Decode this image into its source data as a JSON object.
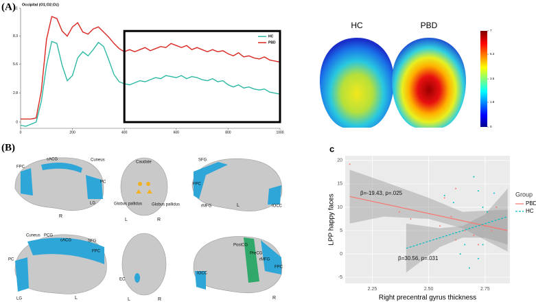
{
  "panel_labels": [
    "(A)",
    "(B)",
    "c"
  ],
  "chart_data": [
    {
      "type": "line",
      "title": "Occipital (O1;O2;Oz)",
      "x": [
        0,
        20,
        40,
        60,
        80,
        100,
        120,
        140,
        160,
        180,
        200,
        220,
        240,
        260,
        280,
        300,
        320,
        340,
        360,
        380,
        400,
        420,
        440,
        460,
        480,
        500,
        520,
        540,
        560,
        580,
        600,
        620,
        640,
        660,
        680,
        700,
        720,
        740,
        760,
        780,
        800,
        820,
        840,
        860,
        880,
        900,
        920,
        940,
        960,
        980,
        1000
      ],
      "xlim": [
        0,
        1000
      ],
      "xticks": [
        0,
        200,
        400,
        600,
        800,
        1000
      ],
      "ylim": [
        -0.6,
        11
      ],
      "yticks": [
        0,
        2.8,
        5.6,
        8.3,
        11
      ],
      "legend": "upper right",
      "highlight_box": {
        "x": [
          400,
          1000
        ],
        "y": [
          0,
          8.8
        ]
      },
      "series": [
        {
          "name": "HC",
          "color": "#2cb9a4",
          "values": [
            -0.3,
            -0.4,
            -0.2,
            0,
            2,
            5.5,
            7.8,
            7.6,
            5.5,
            4,
            4.5,
            6.2,
            6.8,
            6.4,
            7,
            7.7,
            7.3,
            6,
            4.6,
            3.9,
            3.7,
            3.6,
            3.8,
            4,
            3.9,
            4.1,
            4.3,
            4.2,
            4.5,
            4.4,
            4.3,
            4.5,
            4.2,
            4.4,
            4.3,
            4.1,
            4,
            4.2,
            3.9,
            4,
            3.6,
            3.4,
            3.6,
            3.3,
            3.4,
            3.2,
            3.1,
            3.2,
            2.9,
            2.8,
            2.7
          ]
        },
        {
          "name": "PBD",
          "color": "#d9261f",
          "values": [
            0.3,
            0.3,
            0.3,
            0.4,
            3,
            8,
            10.2,
            10,
            8.8,
            8.3,
            9.2,
            9.6,
            8.7,
            8.5,
            9,
            9.2,
            8.7,
            8.2,
            7.6,
            7.1,
            6.8,
            7,
            6.8,
            7,
            7.2,
            6.9,
            7.1,
            7.3,
            7.2,
            7.6,
            7.4,
            7.2,
            7.4,
            7,
            7.2,
            7,
            6.8,
            7,
            6.8,
            6.9,
            6.6,
            6.4,
            6.7,
            6.3,
            6.4,
            6.2,
            6.1,
            6.3,
            6,
            5.9,
            5.8
          ]
        }
      ]
    },
    {
      "type": "topomap",
      "titles": [
        "HC",
        "PBD"
      ],
      "clim": [
        0,
        7
      ],
      "cticks": [
        0,
        1.8,
        3.5,
        5.3,
        7
      ]
    },
    {
      "type": "scatter",
      "xlabel": "Right precentral gyrus thickness",
      "ylabel": "LPP happy faces",
      "xlim": [
        2.13,
        2.86
      ],
      "ylim": [
        -6.3,
        21
      ],
      "xticks": [
        2.25,
        {
          "value": 2.5,
          "label": "2.50"
        },
        2.75
      ],
      "yticks": [
        -5,
        0,
        5,
        10,
        15,
        20
      ],
      "grid": true,
      "legend_title": "Group",
      "legend": "right",
      "annotations": [
        "β=-19.43, p=.025",
        "β=30.56, p=.031"
      ],
      "series": [
        {
          "name": "PBD",
          "color": "#f8766d",
          "dash": false,
          "x": [
            2.15,
            2.37,
            2.42,
            2.55,
            2.57,
            2.6,
            2.62,
            2.66,
            2.7,
            2.72,
            2.75,
            2.78,
            2.8,
            2.62
          ],
          "y": [
            19.2,
            9,
            7.5,
            6,
            12,
            8,
            3,
            5,
            4,
            2,
            6,
            5,
            10,
            14
          ],
          "fit": {
            "x": [
              2.15,
              2.85
            ],
            "y": [
              12.3,
              5
            ]
          },
          "band": {
            "x": [
              2.15,
              2.3,
              2.5,
              2.65,
              2.85
            ],
            "lower": [
              6.5,
              8,
              7.5,
              5.5,
              0.5
            ],
            "upper": [
              18,
              15.5,
              12,
              9,
              9.5
            ]
          }
        },
        {
          "name": "HC",
          "color": "#00bfc4",
          "dash": true,
          "x": [
            2.57,
            2.61,
            2.7,
            2.72,
            2.74,
            2.76,
            2.68,
            2.72,
            2.74,
            2.79,
            2.64,
            2.66
          ],
          "y": [
            12.5,
            11,
            16.5,
            13.5,
            10,
            9,
            -3,
            -1,
            2,
            13,
            0,
            2
          ],
          "fit": {
            "x": [
              2.4,
              2.85
            ],
            "y": [
              1.2,
              8
            ]
          },
          "band": {
            "x": [
              2.4,
              2.55,
              2.65,
              2.75,
              2.85
            ],
            "lower": [
              -4,
              1.5,
              3.5,
              3.5,
              2
            ],
            "upper": [
              6.5,
              5.5,
              6,
              8.5,
              14
            ]
          }
        }
      ]
    }
  ],
  "brain_labels": [
    "FPC",
    "cACG",
    "Cuneus",
    "PC",
    "LG",
    "R",
    "Caudate",
    "Globus pallidus",
    "Globus pallidus",
    "L",
    "R",
    "SFG",
    "FPC",
    "rMFG",
    "L",
    "IOCC",
    "Cuneus",
    "PCG",
    "cACG",
    "SFG",
    "FPC",
    "PC",
    "LG",
    "L",
    "EC",
    "L",
    "R",
    "PostCG",
    "PreCG",
    "rMFG",
    "FPC",
    "IOCC",
    "R"
  ]
}
